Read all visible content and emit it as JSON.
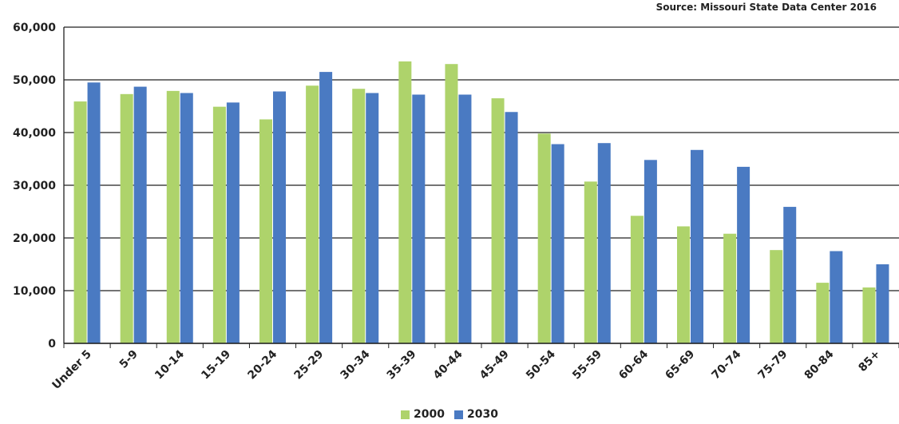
{
  "source_note": "Source: Missouri State Data Center 2016",
  "chart_data": {
    "type": "bar",
    "categories": [
      "Under 5",
      "5-9",
      "10-14",
      "15-19",
      "20-24",
      "25-29",
      "30-34",
      "35-39",
      "40-44",
      "45-49",
      "50-54",
      "55-59",
      "60-64",
      "65-69",
      "70-74",
      "75-79",
      "80-84",
      "85+"
    ],
    "series": [
      {
        "name": "2000",
        "color": "#aed36b",
        "values": [
          45900,
          47300,
          47900,
          44900,
          42500,
          48900,
          48300,
          53500,
          53000,
          46500,
          39800,
          30700,
          24200,
          22200,
          20800,
          17700,
          11500,
          10600
        ]
      },
      {
        "name": "2030",
        "color": "#4a7ac2",
        "values": [
          49500,
          48700,
          47500,
          45700,
          47800,
          51500,
          47500,
          47200,
          47200,
          43900,
          37800,
          38000,
          34800,
          36700,
          33500,
          25900,
          17500,
          15000
        ]
      }
    ],
    "ylim": [
      0,
      60000
    ],
    "yticks": [
      0,
      10000,
      20000,
      30000,
      40000,
      50000,
      60000
    ],
    "ytick_labels": [
      "0",
      "10,000",
      "20,000",
      "30,000",
      "40,000",
      "50,000",
      "60,000"
    ],
    "grid": true,
    "legend_position": "bottom-center"
  }
}
